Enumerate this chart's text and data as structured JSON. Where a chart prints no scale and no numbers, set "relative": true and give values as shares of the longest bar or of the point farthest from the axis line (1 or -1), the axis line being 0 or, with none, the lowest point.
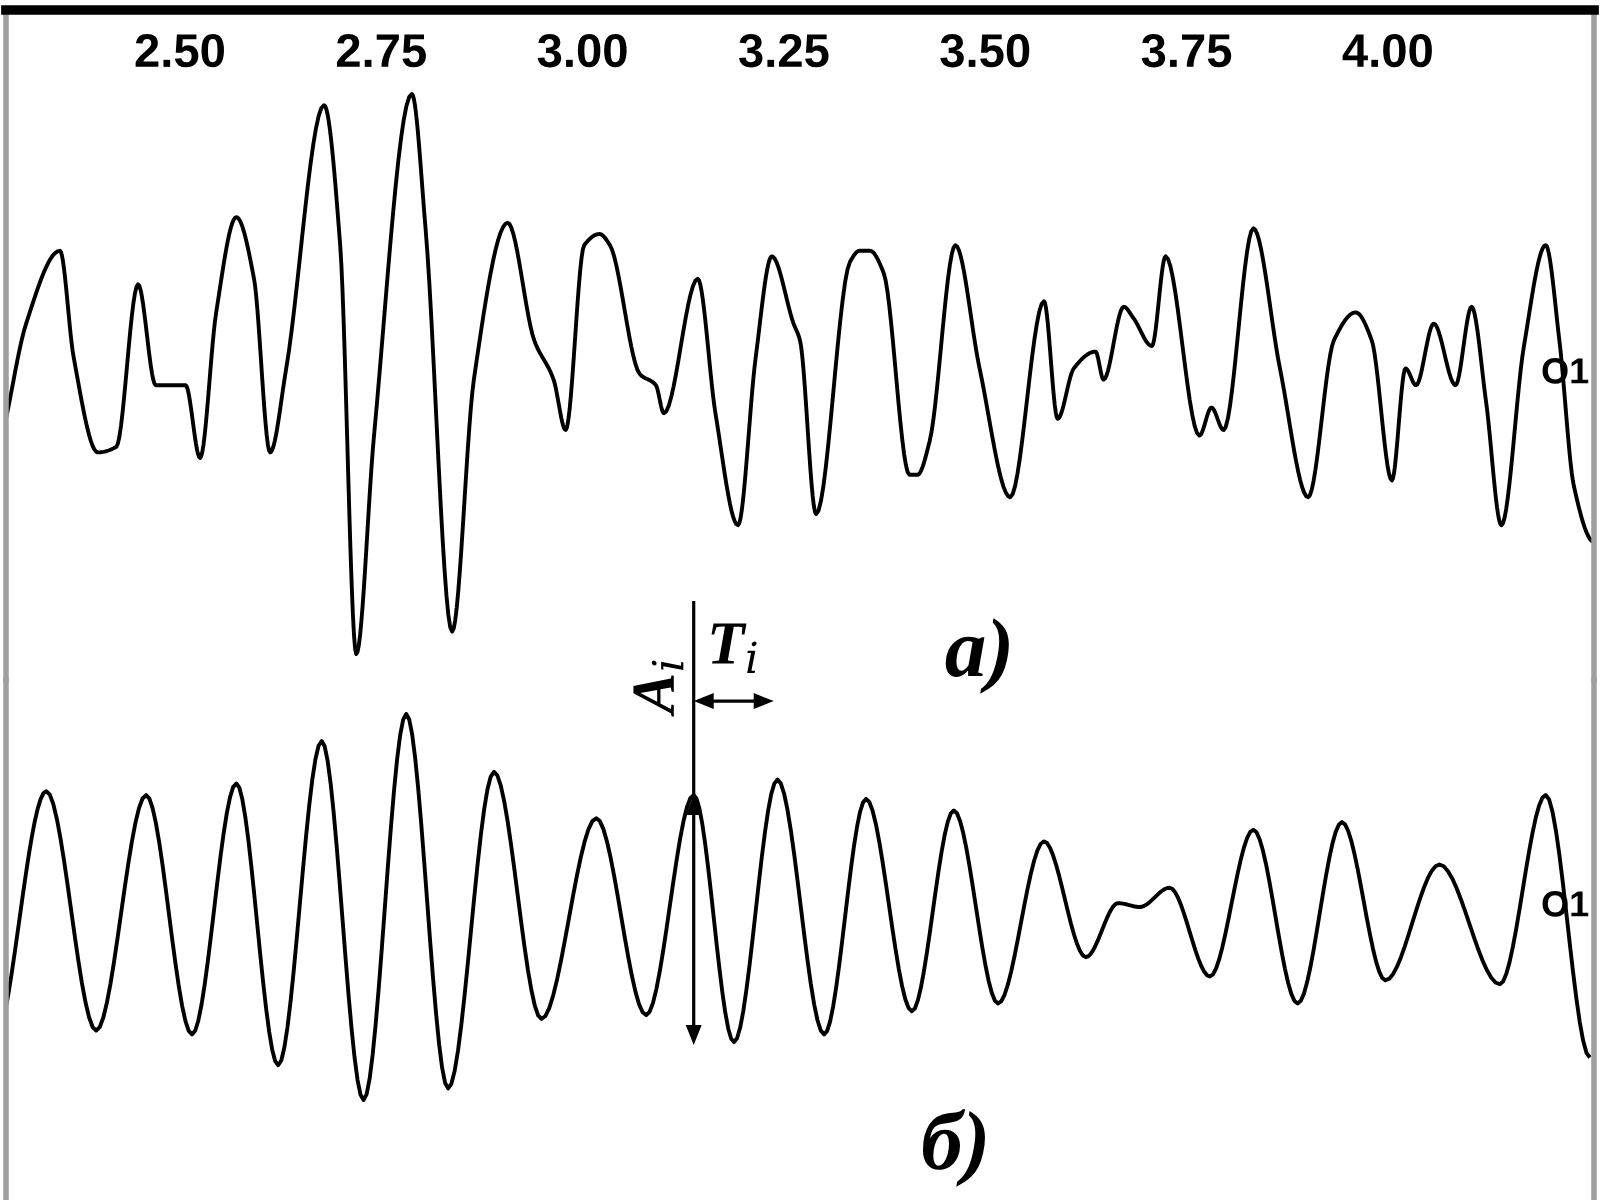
{
  "chart_data": [
    {
      "type": "line",
      "relative": true,
      "xlim": [
        2.284,
        4.256
      ],
      "xticks": [
        {
          "value": 2.5,
          "label": "2.50"
        },
        {
          "value": 2.75,
          "label": "2.75"
        },
        {
          "value": 3.0,
          "label": "3.00"
        },
        {
          "value": 3.25,
          "label": "3.25"
        },
        {
          "value": 3.5,
          "label": "3.50"
        },
        {
          "value": 3.75,
          "label": "3.75"
        },
        {
          "value": 4.0,
          "label": "4.00"
        }
      ],
      "annotations": [
        "a)"
      ],
      "series": [
        {
          "name": "O1",
          "color": "#000000",
          "x": [
            2.284,
            2.309,
            2.351,
            2.368,
            2.398,
            2.421,
            2.448,
            2.47,
            2.493,
            2.507,
            2.525,
            2.545,
            2.57,
            2.592,
            2.612,
            2.632,
            2.679,
            2.699,
            2.719,
            2.741,
            2.788,
            2.805,
            2.838,
            2.865,
            2.907,
            2.94,
            2.964,
            2.979,
            3.002,
            3.021,
            3.034,
            3.071,
            3.091,
            3.101,
            3.143,
            3.165,
            3.193,
            3.215,
            3.235,
            3.262,
            3.27,
            3.29,
            3.332,
            3.344,
            3.357,
            3.374,
            3.406,
            3.416,
            3.431,
            3.463,
            3.493,
            3.531,
            3.573,
            3.59,
            3.61,
            3.637,
            3.647,
            3.672,
            3.684,
            3.707,
            3.724,
            3.766,
            3.781,
            3.796,
            3.833,
            3.866,
            3.901,
            3.933,
            3.96,
            3.98,
            4.005,
            4.022,
            4.035,
            4.057,
            4.084,
            4.104,
            4.122,
            4.141,
            4.169,
            4.196,
            4.213,
            4.231,
            4.256
          ],
          "values": [
            0.42,
            0.59,
            0.72,
            0.53,
            0.36,
            0.37,
            0.66,
            0.48,
            0.48,
            0.48,
            0.35,
            0.61,
            0.78,
            0.67,
            0.36,
            0.51,
            0.98,
            0.73,
            0.0,
            0.39,
            1.0,
            0.76,
            0.04,
            0.49,
            0.77,
            0.56,
            0.49,
            0.4,
            0.73,
            0.75,
            0.73,
            0.5,
            0.48,
            0.43,
            0.67,
            0.43,
            0.23,
            0.53,
            0.71,
            0.59,
            0.56,
            0.25,
            0.7,
            0.72,
            0.72,
            0.68,
            0.32,
            0.32,
            0.38,
            0.73,
            0.51,
            0.28,
            0.63,
            0.42,
            0.51,
            0.54,
            0.49,
            0.62,
            0.6,
            0.55,
            0.71,
            0.39,
            0.44,
            0.4,
            0.76,
            0.51,
            0.28,
            0.56,
            0.61,
            0.56,
            0.31,
            0.51,
            0.48,
            0.59,
            0.48,
            0.62,
            0.45,
            0.23,
            0.55,
            0.73,
            0.56,
            0.3,
            0.2
          ]
        }
      ]
    },
    {
      "type": "line",
      "relative": true,
      "xlim": [
        2.284,
        4.256
      ],
      "tick_labels": false,
      "annotations": [
        "б)",
        {
          "text": "A$_{i}$",
          "x": 3.138,
          "y": 0.79
        },
        {
          "text": "T$_{i}$",
          "x": 3.138,
          "y": 0.79
        }
      ],
      "series": [
        {
          "name": "O1",
          "color": "#000000",
          "x": [
            2.284,
            2.334,
            2.396,
            2.458,
            2.515,
            2.57,
            2.622,
            2.676,
            2.728,
            2.781,
            2.833,
            2.89,
            2.949,
            3.017,
            3.079,
            3.138,
            3.188,
            3.242,
            3.3,
            3.352,
            3.409,
            3.461,
            3.516,
            3.573,
            3.625,
            3.665,
            3.692,
            3.729,
            3.779,
            3.833,
            3.888,
            3.943,
            3.997,
            4.064,
            4.139,
            4.196,
            4.251
          ],
          "values": [
            0.24,
            0.8,
            0.18,
            0.79,
            0.17,
            0.82,
            0.09,
            0.93,
            0.0,
            1.0,
            0.03,
            0.85,
            0.21,
            0.73,
            0.22,
            0.79,
            0.15,
            0.83,
            0.17,
            0.78,
            0.23,
            0.75,
            0.25,
            0.67,
            0.37,
            0.51,
            0.5,
            0.55,
            0.32,
            0.7,
            0.25,
            0.72,
            0.31,
            0.61,
            0.3,
            0.79,
            0.11
          ]
        }
      ]
    }
  ]
}
